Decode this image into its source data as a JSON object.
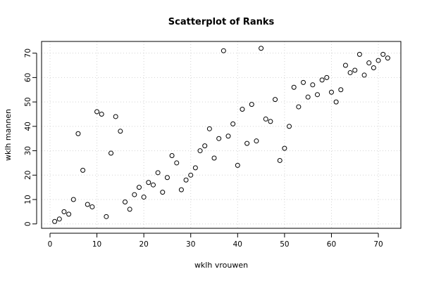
{
  "chart_data": {
    "type": "scatter",
    "title": "Scatterplot of Ranks",
    "xlabel": "wklh vrouwen",
    "ylabel": "wklh mannen",
    "xlim": [
      -1.8,
      74.8
    ],
    "ylim": [
      -1.8,
      74.8
    ],
    "xticks": [
      0,
      10,
      20,
      30,
      40,
      50,
      60,
      70
    ],
    "yticks": [
      0,
      10,
      20,
      30,
      40,
      50,
      60,
      70
    ],
    "grid": true,
    "points": [
      [
        1,
        1
      ],
      [
        2,
        2
      ],
      [
        3,
        5
      ],
      [
        4,
        4
      ],
      [
        5,
        10
      ],
      [
        6,
        37
      ],
      [
        7,
        22
      ],
      [
        8,
        8
      ],
      [
        9,
        7
      ],
      [
        10,
        46
      ],
      [
        11,
        45
      ],
      [
        12,
        3
      ],
      [
        13,
        29
      ],
      [
        14,
        44
      ],
      [
        15,
        38
      ],
      [
        16,
        9
      ],
      [
        17,
        6
      ],
      [
        18,
        12
      ],
      [
        19,
        15
      ],
      [
        20,
        11
      ],
      [
        21,
        17
      ],
      [
        22,
        16
      ],
      [
        23,
        21
      ],
      [
        24,
        13
      ],
      [
        25,
        19
      ],
      [
        26,
        28
      ],
      [
        27,
        25
      ],
      [
        28,
        14
      ],
      [
        29,
        18
      ],
      [
        30,
        20
      ],
      [
        31,
        23
      ],
      [
        32,
        30
      ],
      [
        33,
        32
      ],
      [
        34,
        39
      ],
      [
        35,
        27
      ],
      [
        36,
        35
      ],
      [
        37,
        71
      ],
      [
        38,
        36
      ],
      [
        39,
        41
      ],
      [
        40,
        24
      ],
      [
        41,
        47
      ],
      [
        42,
        33
      ],
      [
        43,
        49
      ],
      [
        44,
        34
      ],
      [
        45,
        72
      ],
      [
        46,
        43
      ],
      [
        47,
        42
      ],
      [
        48,
        51
      ],
      [
        49,
        26
      ],
      [
        50,
        31
      ],
      [
        51,
        40
      ],
      [
        52,
        56
      ],
      [
        53,
        48
      ],
      [
        54,
        58
      ],
      [
        55,
        52
      ],
      [
        56,
        57
      ],
      [
        57,
        53
      ],
      [
        58,
        59
      ],
      [
        59,
        60
      ],
      [
        60,
        54
      ],
      [
        61,
        50
      ],
      [
        62,
        55
      ],
      [
        63,
        65
      ],
      [
        64,
        62
      ],
      [
        65,
        63
      ],
      [
        66,
        69.5
      ],
      [
        67,
        61
      ],
      [
        68,
        66
      ],
      [
        69,
        64
      ],
      [
        70,
        67
      ],
      [
        71,
        69.5
      ],
      [
        72,
        68
      ]
    ]
  }
}
